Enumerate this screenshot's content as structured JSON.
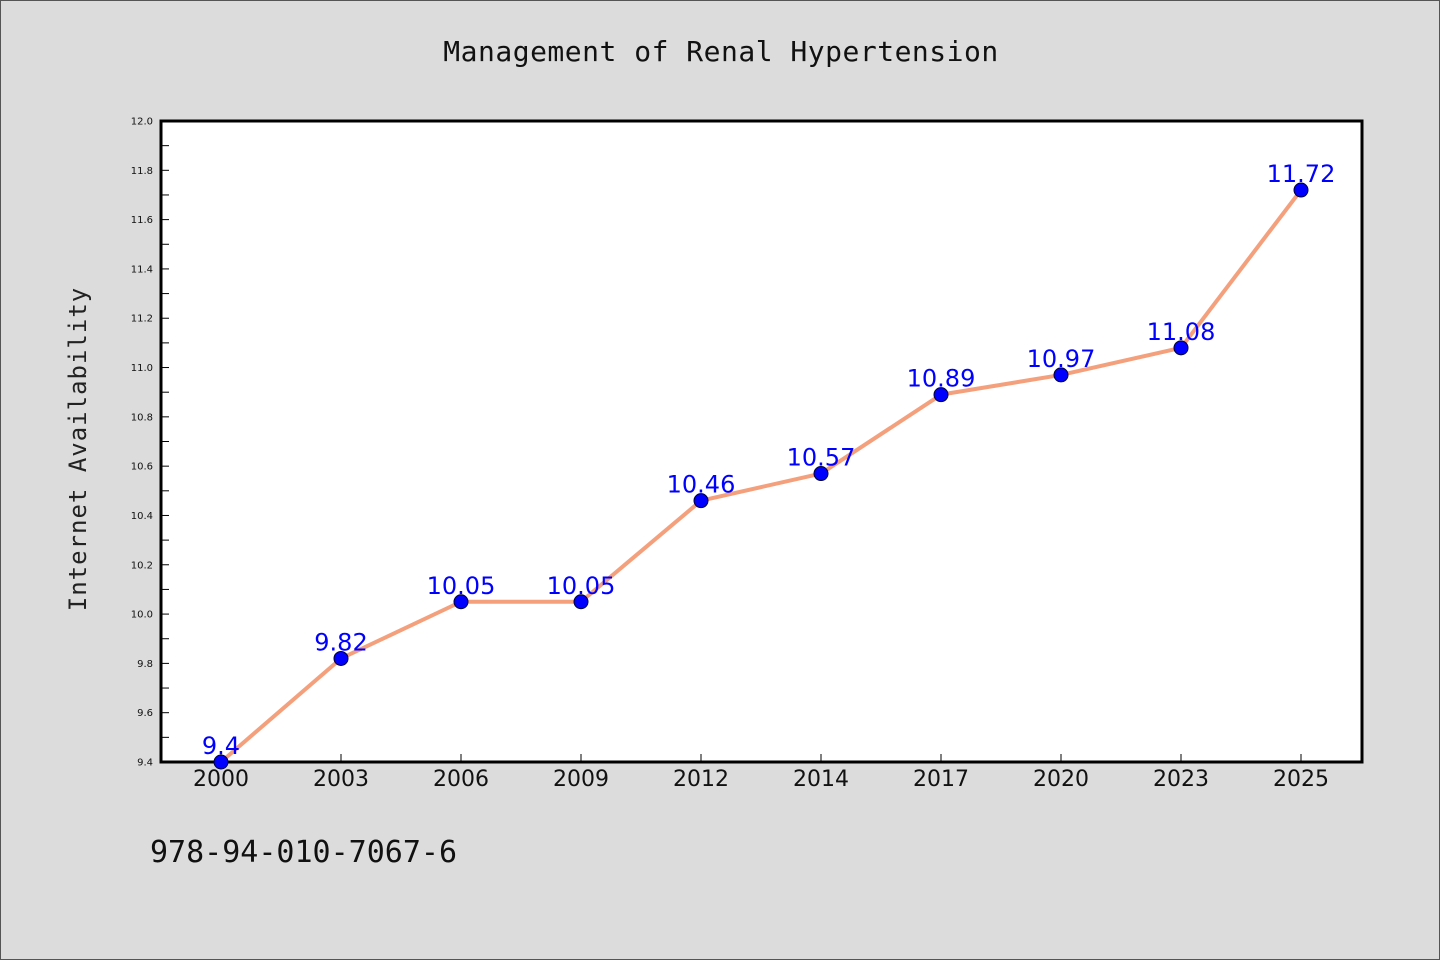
{
  "chart_data": {
    "type": "line",
    "title": "Management of Renal Hypertension",
    "xlabel": "",
    "ylabel": "Internet Availability",
    "categories": [
      "2000",
      "2003",
      "2006",
      "2009",
      "2012",
      "2014",
      "2017",
      "2020",
      "2023",
      "2025"
    ],
    "series": [
      {
        "values": [
          9.4,
          9.82,
          10.05,
          10.05,
          10.46,
          10.57,
          10.89,
          10.97,
          11.08,
          11.72
        ],
        "labels": [
          "9.4",
          "9.82",
          "10.05",
          "10.05",
          "10.46",
          "10.57",
          "10.89",
          "10.97",
          "11.08",
          "11.72"
        ],
        "line_color": "#f4a07c",
        "marker_color": "#0000ff"
      }
    ],
    "ylim": [
      9.4,
      12.0
    ],
    "yticks": [
      "9.4",
      "9.6",
      "9.8",
      "10.0",
      "10.2",
      "10.4",
      "10.6",
      "10.8",
      "11.0",
      "11.2",
      "11.4",
      "11.6",
      "11.8",
      "12.0"
    ],
    "grid": false,
    "legend": "none",
    "data_label_color": "#0000ff",
    "background_color": "#dcdcdc",
    "plot_background_color": "#ffffff"
  },
  "footer": {
    "code": "978-94-010-7067-6"
  }
}
